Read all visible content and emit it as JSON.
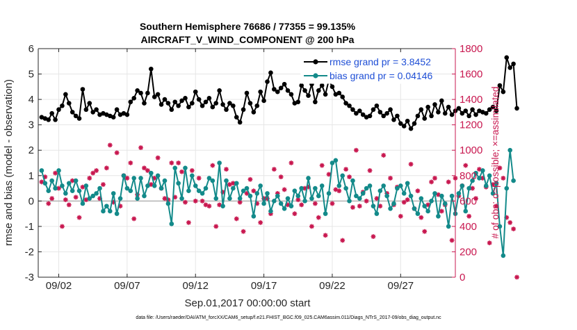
{
  "chart_data": {
    "type": "line",
    "title": "Southern Hemisphere 76686 / 77355 = 99.135%",
    "subtitle": "AIRCRAFT_V_WIND_COMPONENT @ 200 hPa",
    "xlabel": "Sep.01,2017 00:00:00 start",
    "ylabel": "rmse and bias (model - observation)",
    "y2label": "# of obs: o=possible; ×=assimilated",
    "footnote": "data file: /Users/raeder/DAI/ATM_forcXX/CAM6_setup/f.e21.FHIST_BGC.f09_025.CAM6assim.011/Diags_NTrS_2017-09/obs_diag_output.nc",
    "xlim": [
      0.5,
      31.0
    ],
    "ylim": [
      -3,
      6
    ],
    "y2lim": [
      0,
      1800
    ],
    "x_ticks": [
      {
        "x": 2,
        "label": "09/02"
      },
      {
        "x": 7,
        "label": "09/07"
      },
      {
        "x": 12,
        "label": "09/12"
      },
      {
        "x": 17,
        "label": "09/17"
      },
      {
        "x": 22,
        "label": "09/22"
      },
      {
        "x": 27,
        "label": "09/27"
      }
    ],
    "y_ticks": [
      {
        "v": -3,
        "label": "-3"
      },
      {
        "v": -2,
        "label": "-2"
      },
      {
        "v": -1,
        "label": "-1"
      },
      {
        "v": 0,
        "label": "0"
      },
      {
        "v": 1,
        "label": "1"
      },
      {
        "v": 2,
        "label": "2"
      },
      {
        "v": 3,
        "label": "3"
      },
      {
        "v": 4,
        "label": "4"
      },
      {
        "v": 5,
        "label": "5"
      },
      {
        "v": 6,
        "label": "6"
      }
    ],
    "y2_ticks": [
      {
        "v": 0,
        "label": "0"
      },
      {
        "v": 200,
        "label": "200"
      },
      {
        "v": 400,
        "label": "400"
      },
      {
        "v": 600,
        "label": "600"
      },
      {
        "v": 800,
        "label": "800"
      },
      {
        "v": 1000,
        "label": "1000"
      },
      {
        "v": 1200,
        "label": "1200"
      },
      {
        "v": 1400,
        "label": "1400"
      },
      {
        "v": 1600,
        "label": "1600"
      },
      {
        "v": 1800,
        "label": "1800"
      }
    ],
    "legend": {
      "position": "top-right",
      "entries": [
        "rmse grand pr = 3.8452",
        "bias grand pr = 0.04146"
      ]
    },
    "colors": {
      "rmse": "#000000",
      "bias": "#138a8a",
      "obs": "#c8174f",
      "zero_line": "#b3b3b3",
      "legend_text": "#1f4fd6"
    },
    "x_start": 0.75,
    "x_step": 0.25,
    "series": [
      {
        "name": "rmse grand pr = 3.8452",
        "axis": "left",
        "values": [
          3.3,
          3.25,
          3.2,
          3.45,
          3.2,
          3.6,
          3.75,
          4.2,
          3.85,
          3.5,
          3.35,
          3.25,
          4.4,
          3.6,
          3.85,
          3.5,
          3.6,
          3.4,
          3.45,
          3.4,
          3.35,
          3.3,
          3.6,
          3.4,
          3.45,
          3.4,
          3.9,
          4.05,
          4.35,
          4.25,
          3.85,
          4.25,
          5.2,
          4.1,
          4.2,
          3.8,
          4.0,
          3.85,
          3.6,
          3.9,
          3.75,
          3.95,
          4.05,
          3.7,
          3.85,
          4.3,
          4.0,
          3.75,
          3.9,
          4.05,
          3.7,
          3.85,
          4.35,
          3.8,
          3.6,
          3.85,
          3.75,
          3.3,
          3.1,
          3.6,
          4.25,
          3.85,
          3.5,
          3.75,
          4.3,
          3.95,
          4.7,
          5.05,
          4.4,
          4.3,
          4.45,
          4.6,
          4.35,
          4.2,
          3.85,
          3.9,
          4.55,
          4.35,
          4.15,
          4.6,
          3.9,
          4.35,
          4.55,
          4.2,
          4.75,
          4.5,
          4.2,
          4.25,
          4.1,
          3.85,
          3.75,
          3.6,
          3.45,
          3.55,
          3.4,
          3.3,
          3.35,
          3.6,
          3.75,
          3.5,
          3.35,
          3.45,
          3.6,
          3.2,
          3.35,
          3.05,
          2.95,
          3.15,
          2.85,
          3.05,
          3.35,
          3.6,
          3.25,
          3.7,
          3.35,
          3.8,
          3.5,
          3.95,
          3.45,
          3.7,
          3.4,
          3.55,
          3.65,
          3.45,
          3.55,
          3.35,
          3.6,
          3.4,
          3.55,
          3.5,
          3.45,
          3.6,
          3.7,
          3.55,
          4.55,
          4.3,
          5.65,
          5.25,
          5.4,
          3.65
        ],
        "marker": "filled-circle"
      },
      {
        "name": "bias grand pr = 0.04146",
        "axis": "left",
        "values": [
          1.2,
          0.7,
          0.4,
          0.8,
          0.5,
          1.2,
          0.6,
          0.3,
          0.7,
          0.4,
          0.8,
          0.4,
          -0.1,
          0.6,
          0.1,
          0.2,
          0.3,
          0.5,
          -0.4,
          -0.2,
          -0.4,
          0.3,
          -0.5,
          0.1,
          1.0,
          0.5,
          0.4,
          0.9,
          0.1,
          0.9,
          0.2,
          0.6,
          1.1,
          0.6,
          1.0,
          0.5,
          0.8,
          -0.1,
          -0.9,
          1.3,
          0.7,
          0.1,
          1.3,
          0.4,
          1.0,
          0.6,
          0.4,
          0.3,
          0.5,
          0.9,
          0.8,
          0.1,
          1.5,
          -0.2,
          0.8,
          0.1,
          0.5,
          0.7,
          0.1,
          0.4,
          0.5,
          0.2,
          -0.6,
          0.3,
          0.6,
          -0.1,
          0.3,
          -0.4,
          0.0,
          0.2,
          -0.1,
          -0.3,
          0.1,
          -0.2,
          0.4,
          0.2,
          0.5,
          0.0,
          0.9,
          0.1,
          0.5,
          0.2,
          0.6,
          -0.5,
          0.3,
          1.5,
          1.6,
          0.6,
          1.0,
          0.5,
          0.0,
          0.8,
          0.2,
          0.1,
          0.3,
          0.5,
          0.6,
          -0.2,
          -0.5,
          0.4,
          0.6,
          0.2,
          -0.3,
          -0.1,
          0.5,
          0.6,
          0.3,
          0.7,
          0.2,
          -0.3,
          -0.5,
          0.1,
          -0.2,
          -0.4,
          0.0,
          0.3,
          -0.6,
          0.2,
          -0.1,
          -1.0,
          0.2,
          -0.5,
          0.3,
          0.6,
          -0.4,
          0.5,
          0.8,
          1.1,
          0.9,
          1.2,
          0.6,
          1.0,
          0.3,
          0.7,
          -1.0,
          -2.15,
          0.5,
          2.0,
          0.8
        ],
        "marker": "filled-circle"
      },
      {
        "name": "# of obs assimilated",
        "axis": "right",
        "values": [
          750,
          790,
          580,
          620,
          820,
          700,
          400,
          610,
          570,
          760,
          630,
          470,
          710,
          610,
          780,
          820,
          840,
          620,
          730,
          860,
          1040,
          590,
          980,
          560,
          800,
          780,
          900,
          460,
          650,
          1020,
          860,
          840,
          730,
          780,
          940,
          700,
          620,
          610,
          900,
          630,
          900,
          830,
          590,
          430,
          840,
          600,
          780,
          600,
          570,
          560,
          880,
          400,
          570,
          670,
          850,
          730,
          740,
          460,
          590,
          360,
          660,
          770,
          680,
          580,
          430,
          620,
          620,
          500,
          850,
          660,
          790,
          690,
          570,
          900,
          500,
          610,
          570,
          700,
          710,
          400,
          580,
          470,
          880,
          330,
          810,
          580,
          690,
          680,
          290,
          850,
          790,
          550,
          1000,
          560,
          670,
          600,
          840,
          320,
          620,
          560,
          960,
          660,
          780,
          570,
          710,
          480,
          590,
          610,
          890,
          540,
          680,
          470,
          360,
          570,
          750,
          780,
          650,
          520,
          570,
          750,
          290,
          780,
          640,
          720,
          880,
          480,
          700,
          620,
          850,
          780,
          710,
          270,
          730,
          560,
          860,
          780,
          470,
          430,
          380,
          0
        ],
        "marker": "asterisk"
      },
      {
        "name": "# of obs possible",
        "axis": "right",
        "values": [
          null,
          null,
          null,
          null,
          null,
          null,
          null,
          null,
          null,
          null,
          null,
          null,
          null,
          null,
          null,
          null,
          null,
          null,
          null,
          null,
          null,
          null,
          null,
          null,
          null,
          null,
          null,
          null,
          null,
          null,
          null,
          null,
          null,
          null,
          null,
          null,
          null,
          null,
          null,
          null,
          null,
          null,
          null,
          null,
          null,
          null,
          null,
          null,
          null,
          null,
          null,
          null,
          null,
          null,
          null,
          null,
          null,
          null,
          null,
          null,
          null,
          null,
          null,
          null,
          null,
          null,
          null,
          null,
          null,
          null,
          null,
          null,
          null,
          null,
          null,
          null,
          null,
          null,
          null,
          null,
          null,
          null,
          null,
          null,
          null,
          null,
          null,
          null,
          null,
          null,
          null,
          null,
          null,
          null,
          null,
          null,
          null,
          null,
          null,
          null,
          null,
          null,
          null,
          null,
          null,
          null,
          null,
          null,
          null,
          null,
          null,
          null,
          null,
          null,
          null,
          null,
          null,
          null,
          null,
          null,
          null,
          null,
          null,
          null,
          null,
          null,
          null,
          null,
          null,
          null,
          null,
          null,
          null,
          null,
          null,
          null,
          null,
          null,
          null,
          null
        ],
        "marker": "open-circle"
      }
    ]
  }
}
